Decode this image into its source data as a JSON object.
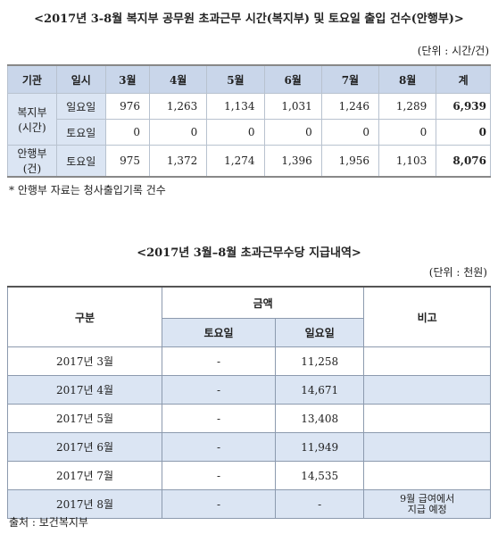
{
  "table1": {
    "title": "<2017년 3-8월 복지부 공무원 초과근무 시간(복지부) 및 토요일 출입 건수(안행부)>",
    "unit": "(단위 : 시간/건)",
    "header": [
      "기관",
      "일시",
      "3월",
      "4월",
      "5월",
      "6월",
      "7월",
      "8월",
      "계"
    ],
    "groups": [
      {
        "org": [
          "복지부",
          "(시간)"
        ],
        "rows": [
          {
            "day": "일요일",
            "values": [
              "976",
              "1,263",
              "1,134",
              "1,031",
              "1,246",
              "1,289"
            ],
            "total": "6,939"
          },
          {
            "day": "토요일",
            "values": [
              "0",
              "0",
              "0",
              "0",
              "0",
              "0"
            ],
            "total": "0"
          }
        ]
      },
      {
        "org": [
          "안행부",
          "(건)"
        ],
        "rows": [
          {
            "day": "토요일",
            "values": [
              "975",
              "1,372",
              "1,274",
              "1,396",
              "1,956",
              "1,103"
            ],
            "total": "8,076"
          }
        ]
      }
    ],
    "note": "* 안행부 자료는 청사출입기록 건수"
  },
  "table2": {
    "title": "<2017년 3월–8월 초과근무수당 지급내역>",
    "unit": "(단위 : 천원)",
    "header": {
      "period": "구분",
      "amount": "금액",
      "sat": "토요일",
      "sun": "일요일",
      "remark": "비고"
    },
    "rows": [
      {
        "period": "2017년 3월",
        "sat": "-",
        "sun": "11,258"
      },
      {
        "period": "2017년 4월",
        "sat": "-",
        "sun": "14,671"
      },
      {
        "period": "2017년 5월",
        "sat": "-",
        "sun": "13,408"
      },
      {
        "period": "2017년 6월",
        "sat": "-",
        "sun": "11,949"
      },
      {
        "period": "2017년 7월",
        "sat": "-",
        "sun": "14,535"
      },
      {
        "period": "2017년 8월",
        "sat": "-",
        "sun": "-",
        "remark": [
          "9월 급여에서",
          "지급 예정"
        ]
      }
    ],
    "source": "출처 : 보건복지부"
  }
}
